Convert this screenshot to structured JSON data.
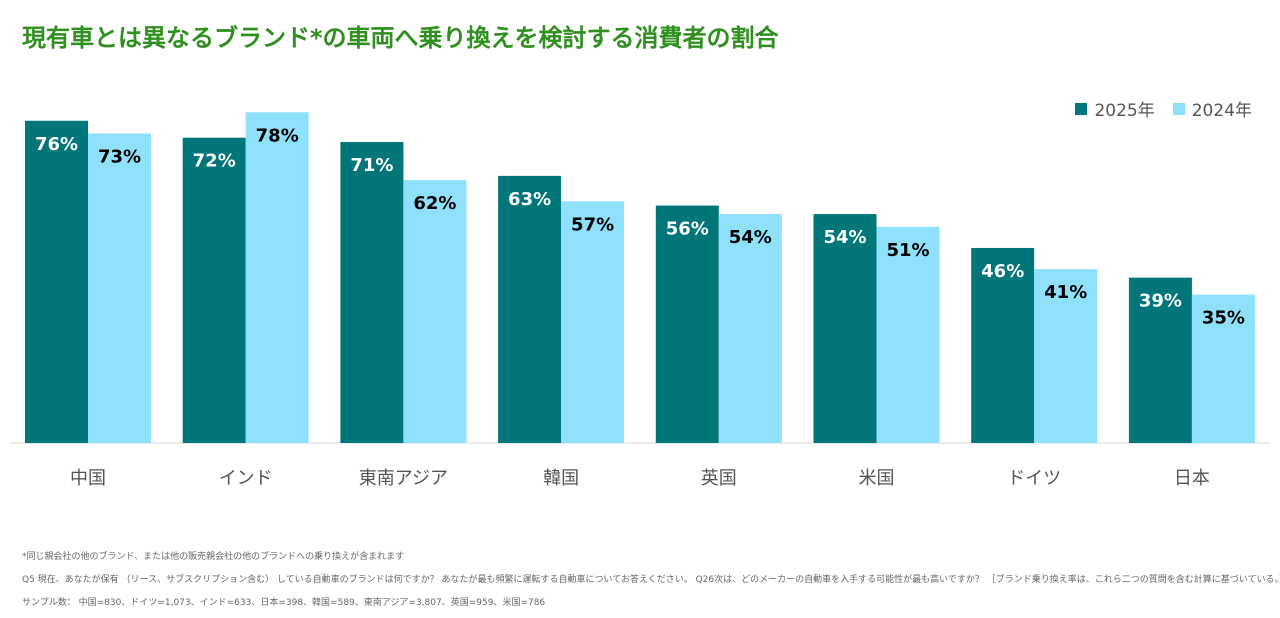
{
  "title": "現有車とは異なるブランド*の車両へ乗り換えを検討する消費者の割合",
  "colors": {
    "title": "#2f8f1f",
    "series_2025": "#00757a",
    "series_2024": "#8ee0fb"
  },
  "legend": {
    "items": [
      "2025年",
      "2024年"
    ]
  },
  "footnotes": {
    "note1": "*同じ親会社の他のブランド、または他の販売親会社の他のブランドへの乗り換えが含まれます",
    "note2": "Q5 現在、あなたが保有 （リース、サブスクリプション含む） している自動車のブランドは何ですか？ あなたが最も頻繁に運転する自動車についてお答えください。 Q26次は、どのメーカーの自動車を入手する可能性が最も高いですか？ ［ブランド乗り換え率は、これら二つの質問を含む計算に基づいている。］",
    "note3": "サンプル数： 中国=830、ドイツ=1,073、インド=633、日本=398、韓国=589、東南アジア=3,807、英国=959、米国=786"
  },
  "chart_data": {
    "type": "bar",
    "categories": [
      "中国",
      "インド",
      "東南アジア",
      "韓国",
      "英国",
      "米国",
      "ドイツ",
      "日本"
    ],
    "series": [
      {
        "name": "2025年",
        "values": [
          76,
          72,
          71,
          63,
          56,
          54,
          46,
          39
        ]
      },
      {
        "name": "2024年",
        "values": [
          73,
          78,
          62,
          57,
          54,
          51,
          41,
          35
        ]
      }
    ],
    "value_suffix": "%",
    "ylim": [
      0,
      80
    ],
    "grid": false,
    "legend_position": "top-right"
  }
}
